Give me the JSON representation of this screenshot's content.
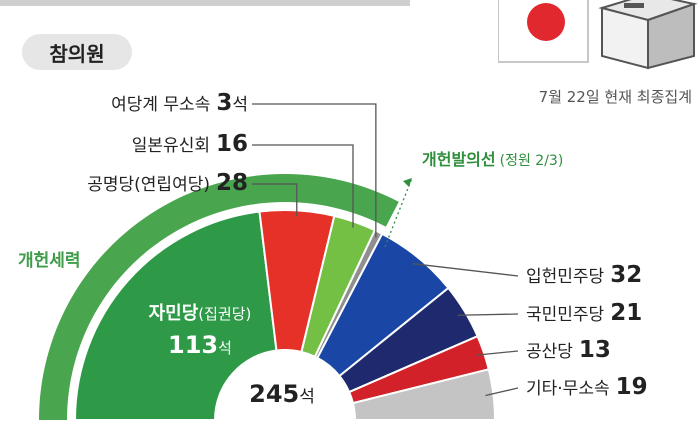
{
  "chamber": "참의원",
  "as_of": "7월 22일 현재 최종집계",
  "bloc_label": "개헌세력",
  "threshold": {
    "label": "개헌발의선",
    "note": "(정원 2/3)"
  },
  "total": {
    "value": "245",
    "unit": "석"
  },
  "colors": {
    "bloc_arc": "#4aa54f",
    "threshold": "#2f8f3d",
    "leader_line": "#555555"
  },
  "chart_data": {
    "type": "pie",
    "shape": "semicircle-donut",
    "total_seats": 245,
    "series": [
      {
        "name": "자민당",
        "name_note": "(집권당)",
        "value": 113,
        "unit": "석",
        "color": "#2e9a48"
      },
      {
        "name": "공명당",
        "name_note": "(연립여당)",
        "value": 28,
        "color": "#e53127"
      },
      {
        "name": "일본유신회",
        "value": 16,
        "color": "#74c044"
      },
      {
        "name": "여당계 무소속",
        "value": 3,
        "unit": "석",
        "color": "#8f8f8f"
      },
      {
        "name": "입헌민주당",
        "value": 32,
        "color": "#1a47a6"
      },
      {
        "name": "국민민주당",
        "value": 21,
        "color": "#1f2a6e"
      },
      {
        "name": "공산당",
        "value": 13,
        "color": "#d3212a"
      },
      {
        "name": "기타·무소속",
        "value": 19,
        "color": "#c4c4c4"
      }
    ],
    "threshold_fraction": "2/3"
  }
}
